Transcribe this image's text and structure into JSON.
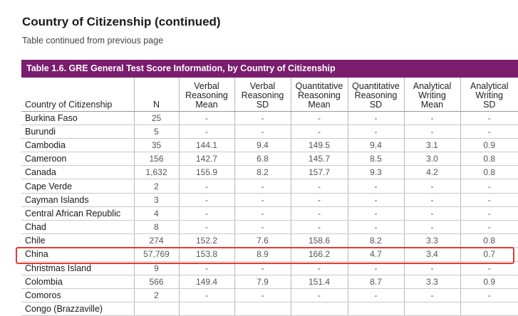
{
  "page": {
    "title": "Country of Citizenship (continued)",
    "subtitle": "Table continued from previous page"
  },
  "table": {
    "caption": "Table 1.6. GRE General Test Score Information, by Country of Citizenship",
    "headers": {
      "country": "Country of Citizenship",
      "n": "N",
      "verbal_mean": [
        "Verbal",
        "Reasoning",
        "Mean"
      ],
      "verbal_sd": [
        "Verbal",
        "Reasoning",
        "SD"
      ],
      "quant_mean": [
        "Quantitative",
        "Reasoning",
        "Mean"
      ],
      "quant_sd": [
        "Quantitative",
        "Reasoning",
        "SD"
      ],
      "writing_mean": [
        "Analytical",
        "Writing",
        "Mean"
      ],
      "writing_sd": [
        "Analytical",
        "Writing",
        "SD"
      ]
    },
    "rows": [
      {
        "country": "Burkina Faso",
        "n": "25",
        "verbal_mean": "-",
        "verbal_sd": "-",
        "quant_mean": "-",
        "quant_sd": "-",
        "writing_mean": "-",
        "writing_sd": "-"
      },
      {
        "country": "Burundi",
        "n": "5",
        "verbal_mean": "-",
        "verbal_sd": "-",
        "quant_mean": "-",
        "quant_sd": "-",
        "writing_mean": "-",
        "writing_sd": "-"
      },
      {
        "country": "Cambodia",
        "n": "35",
        "verbal_mean": "144.1",
        "verbal_sd": "9.4",
        "quant_mean": "149.5",
        "quant_sd": "9.4",
        "writing_mean": "3.1",
        "writing_sd": "0.9"
      },
      {
        "country": "Cameroon",
        "n": "156",
        "verbal_mean": "142.7",
        "verbal_sd": "6.8",
        "quant_mean": "145.7",
        "quant_sd": "8.5",
        "writing_mean": "3.0",
        "writing_sd": "0.8"
      },
      {
        "country": "Canada",
        "n": "1,632",
        "verbal_mean": "155.9",
        "verbal_sd": "8.2",
        "quant_mean": "157.7",
        "quant_sd": "9.3",
        "writing_mean": "4.2",
        "writing_sd": "0.8"
      },
      {
        "country": "Cape Verde",
        "n": "2",
        "verbal_mean": "-",
        "verbal_sd": "-",
        "quant_mean": "-",
        "quant_sd": "-",
        "writing_mean": "-",
        "writing_sd": "-"
      },
      {
        "country": "Cayman Islands",
        "n": "3",
        "verbal_mean": "-",
        "verbal_sd": "-",
        "quant_mean": "-",
        "quant_sd": "-",
        "writing_mean": "-",
        "writing_sd": "-"
      },
      {
        "country": "Central African Republic",
        "n": "4",
        "verbal_mean": "-",
        "verbal_sd": "-",
        "quant_mean": "-",
        "quant_sd": "-",
        "writing_mean": "-",
        "writing_sd": "-"
      },
      {
        "country": "Chad",
        "n": "8",
        "verbal_mean": "-",
        "verbal_sd": "-",
        "quant_mean": "-",
        "quant_sd": "-",
        "writing_mean": "-",
        "writing_sd": "-"
      },
      {
        "country": "Chile",
        "n": "274",
        "verbal_mean": "152.2",
        "verbal_sd": "7.6",
        "quant_mean": "158.6",
        "quant_sd": "8.2",
        "writing_mean": "3.3",
        "writing_sd": "0.8"
      },
      {
        "country": "China",
        "n": "57,769",
        "verbal_mean": "153.8",
        "verbal_sd": "8.9",
        "quant_mean": "166.2",
        "quant_sd": "4.7",
        "writing_mean": "3.4",
        "writing_sd": "0.7"
      },
      {
        "country": "Christmas Island",
        "n": "9",
        "verbal_mean": "-",
        "verbal_sd": "-",
        "quant_mean": "-",
        "quant_sd": "-",
        "writing_mean": "-",
        "writing_sd": "-"
      },
      {
        "country": "Colombia",
        "n": "566",
        "verbal_mean": "149.4",
        "verbal_sd": "7.9",
        "quant_mean": "151.4",
        "quant_sd": "8.7",
        "writing_mean": "3.3",
        "writing_sd": "0.9"
      },
      {
        "country": "Comoros",
        "n": "2",
        "verbal_mean": "-",
        "verbal_sd": "-",
        "quant_mean": "-",
        "quant_sd": "-",
        "writing_mean": "-",
        "writing_sd": "-"
      },
      {
        "country": "Congo (Brazzaville)",
        "n": "",
        "verbal_mean": "",
        "verbal_sd": "",
        "quant_mean": "",
        "quant_sd": "",
        "writing_mean": "",
        "writing_sd": ""
      }
    ]
  },
  "highlight": {
    "row_country": "China",
    "color": "#e23b35"
  },
  "colors": {
    "caption_bar": "#7b1d6e",
    "caption_text": "#ffffff"
  }
}
